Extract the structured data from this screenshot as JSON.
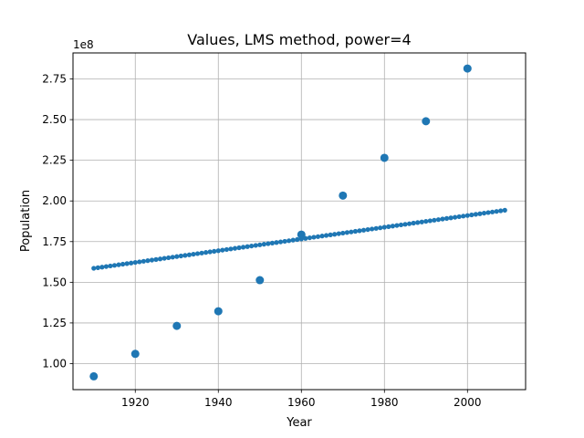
{
  "chart_data": {
    "type": "scatter",
    "title": "Values, LMS method, power=4",
    "xlabel": "Year",
    "ylabel": "Population",
    "y_offset_label": "1e8",
    "xlim": [
      1905,
      2014
    ],
    "ylim": [
      84000000,
      291000000
    ],
    "x_ticks": [
      1920,
      1940,
      1960,
      1980,
      2000
    ],
    "x_tick_labels": [
      "1920",
      "1940",
      "1960",
      "1980",
      "2000"
    ],
    "y_ticks": [
      100000000,
      125000000,
      150000000,
      175000000,
      200000000,
      225000000,
      250000000,
      275000000
    ],
    "y_tick_labels": [
      "1.00",
      "1.25",
      "1.50",
      "1.75",
      "2.00",
      "2.25",
      "2.50",
      "2.75"
    ],
    "grid": true,
    "series": [
      {
        "kind": "scatter",
        "color": "#1f77b4",
        "x": [
          1910,
          1920,
          1930,
          1940,
          1950,
          1960,
          1970,
          1980,
          1990,
          2000
        ],
        "y": [
          92200000,
          106000000,
          123200000,
          132200000,
          151300000,
          179300000,
          203300000,
          226500000,
          249000000,
          281400000
        ]
      },
      {
        "kind": "fit_line_dots",
        "color": "#1f77b4",
        "x_start": 1910,
        "x_end": 2009,
        "x_step": 1,
        "y_start": 158600000,
        "y_end": 194300000
      }
    ]
  }
}
